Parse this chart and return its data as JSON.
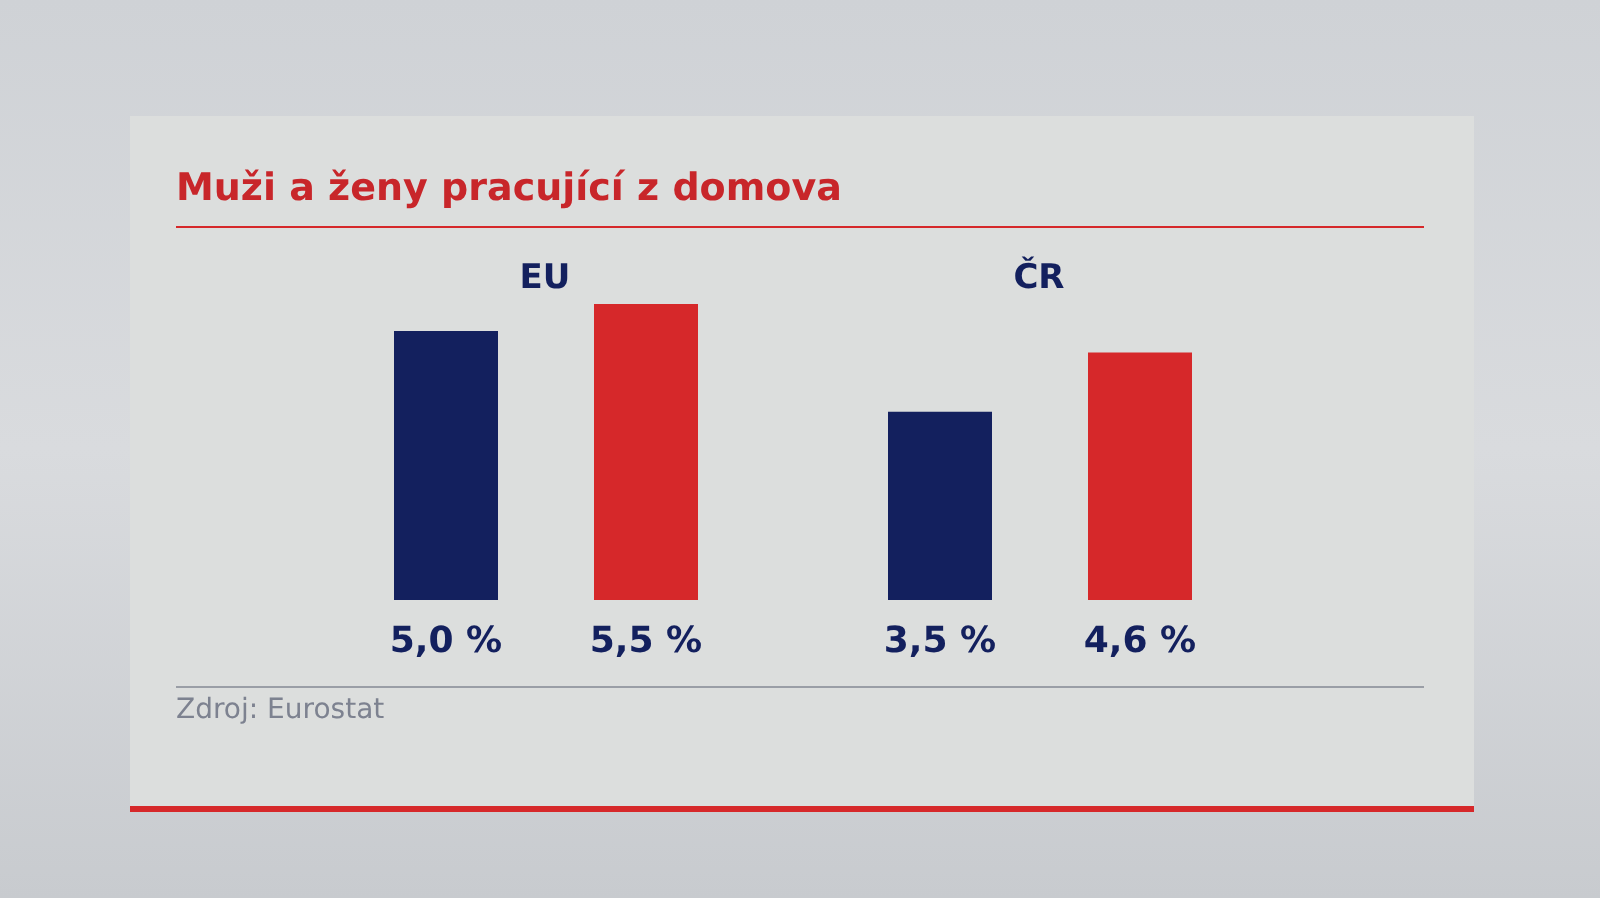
{
  "chart_data": {
    "type": "bar",
    "title": "Muži a ženy pracující z domova",
    "categories": [
      "EU",
      "ČR"
    ],
    "series": [
      {
        "color": "#13205e",
        "values": [
          5.0,
          3.5
        ],
        "value_labels": [
          "5,0 %",
          "3,5 %"
        ]
      },
      {
        "color": "#d6282a",
        "values": [
          5.5,
          4.6
        ],
        "value_labels": [
          "5,5 %",
          "4,6 %"
        ]
      }
    ],
    "tick_labels": "x",
    "annotations": [
      "Zdroj: Eurostat"
    ]
  }
}
